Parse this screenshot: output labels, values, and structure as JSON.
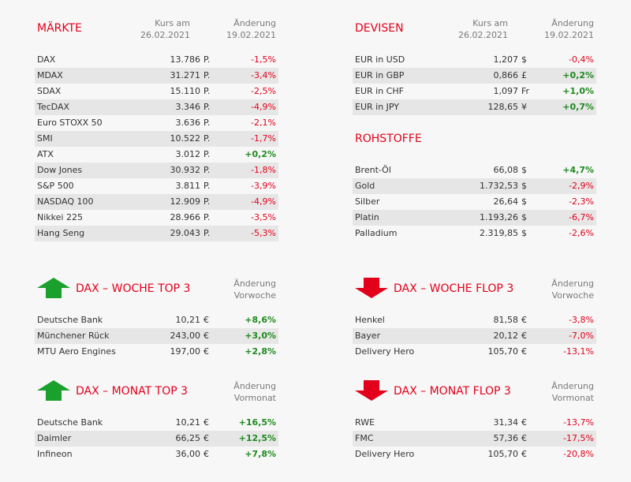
{
  "colors": {
    "title": "#e3001b",
    "negative": "#e3001b",
    "positive": "#1e8a1e",
    "arrow_up": "#1aa02d",
    "arrow_down": "#e3001b"
  },
  "maerkte": {
    "title": "MÄRKTE",
    "col1": [
      "Kurs am",
      "26.02.2021"
    ],
    "col2": [
      "Änderung",
      "19.02.2021"
    ],
    "rows": [
      {
        "name": "DAX",
        "value": "13.786",
        "unit": "P.",
        "change": "-1,5%",
        "dir": "neg"
      },
      {
        "name": "MDAX",
        "value": "31.271",
        "unit": "P.",
        "change": "-3,4%",
        "dir": "neg"
      },
      {
        "name": "SDAX",
        "value": "15.110",
        "unit": "P.",
        "change": "-2,5%",
        "dir": "neg"
      },
      {
        "name": "TecDAX",
        "value": "3.346",
        "unit": "P.",
        "change": "-4,9%",
        "dir": "neg"
      },
      {
        "name": "Euro STOXX 50",
        "value": "3.636",
        "unit": "P.",
        "change": "-2,1%",
        "dir": "neg"
      },
      {
        "name": "SMI",
        "value": "10.522",
        "unit": "P.",
        "change": "-1,7%",
        "dir": "neg"
      },
      {
        "name": "ATX",
        "value": "3.012",
        "unit": "P.",
        "change": "+0,2%",
        "dir": "pos"
      },
      {
        "name": "Dow Jones",
        "value": "30.932",
        "unit": "P.",
        "change": "-1,8%",
        "dir": "neg"
      },
      {
        "name": "S&P 500",
        "value": "3.811",
        "unit": "P.",
        "change": "-3,9%",
        "dir": "neg"
      },
      {
        "name": "NASDAQ 100",
        "value": "12.909",
        "unit": "P.",
        "change": "-4,9%",
        "dir": "neg"
      },
      {
        "name": "Nikkei 225",
        "value": "28.966",
        "unit": "P.",
        "change": "-3,5%",
        "dir": "neg"
      },
      {
        "name": "Hang Seng",
        "value": "29.043",
        "unit": "P.",
        "change": "-5,3%",
        "dir": "neg"
      }
    ]
  },
  "devisen": {
    "title": "DEVISEN",
    "col1": [
      "Kurs am",
      "26.02.2021"
    ],
    "col2": [
      "Änderung",
      "19.02.2021"
    ],
    "rows": [
      {
        "name": "EUR in USD",
        "value": "1,207",
        "unit": "$",
        "change": "-0,4%",
        "dir": "neg"
      },
      {
        "name": "EUR in GBP",
        "value": "0,866",
        "unit": "£",
        "change": "+0,2%",
        "dir": "pos"
      },
      {
        "name": "EUR in CHF",
        "value": "1,097",
        "unit": "Fr",
        "change": "+1,0%",
        "dir": "pos"
      },
      {
        "name": "EUR in JPY",
        "value": "128,65",
        "unit": "¥",
        "change": "+0,7%",
        "dir": "pos"
      }
    ]
  },
  "rohstoffe": {
    "title": "ROHSTOFFE",
    "rows": [
      {
        "name": "Brent-Öl",
        "value": "66,08",
        "unit": "$",
        "change": "+4,7%",
        "dir": "pos"
      },
      {
        "name": "Gold",
        "value": "1.732,53",
        "unit": "$",
        "change": "-2,9%",
        "dir": "neg"
      },
      {
        "name": "Silber",
        "value": "26,64",
        "unit": "$",
        "change": "-2,3%",
        "dir": "neg"
      },
      {
        "name": "Platin",
        "value": "1.193,26",
        "unit": "$",
        "change": "-6,7%",
        "dir": "neg"
      },
      {
        "name": "Palladium",
        "value": "2.319,85",
        "unit": "$",
        "change": "-2,6%",
        "dir": "neg"
      }
    ]
  },
  "woche_top": {
    "title": "DAX – WOCHE TOP 3",
    "icon": "arrow-up-icon",
    "col2": [
      "Änderung",
      "Vorwoche"
    ],
    "rows": [
      {
        "name": "Deutsche Bank",
        "value": "10,21",
        "unit": "€",
        "change": "+8,6%",
        "dir": "pos"
      },
      {
        "name": "Münchener Rück",
        "value": "243,00",
        "unit": "€",
        "change": "+3,0%",
        "dir": "pos"
      },
      {
        "name": "MTU Aero Engines",
        "value": "197,00",
        "unit": "€",
        "change": "+2,8%",
        "dir": "pos"
      }
    ]
  },
  "woche_flop": {
    "title": "DAX – WOCHE FLOP 3",
    "icon": "arrow-down-icon",
    "col2": [
      "Änderung",
      "Vorwoche"
    ],
    "rows": [
      {
        "name": "Henkel",
        "value": "81,58",
        "unit": "€",
        "change": "-3,8%",
        "dir": "neg"
      },
      {
        "name": "Bayer",
        "value": "20,12",
        "unit": "€",
        "change": "-7,0%",
        "dir": "neg"
      },
      {
        "name": "Delivery Hero",
        "value": "105,70",
        "unit": "€",
        "change": "-13,1%",
        "dir": "neg"
      }
    ]
  },
  "monat_top": {
    "title": "DAX – MONAT TOP 3",
    "icon": "arrow-up-icon",
    "col2": [
      "Änderung",
      "Vormonat"
    ],
    "rows": [
      {
        "name": "Deutsche Bank",
        "value": "10,21",
        "unit": "€",
        "change": "+16,5%",
        "dir": "pos"
      },
      {
        "name": "Daimler",
        "value": "66,25",
        "unit": "€",
        "change": "+12,5%",
        "dir": "pos"
      },
      {
        "name": "Infineon",
        "value": "36,00",
        "unit": "€",
        "change": "+7,8%",
        "dir": "pos"
      }
    ]
  },
  "monat_flop": {
    "title": "DAX – MONAT FLOP 3",
    "icon": "arrow-down-icon",
    "col2": [
      "Änderung",
      "Vormonat"
    ],
    "rows": [
      {
        "name": "RWE",
        "value": "31,34",
        "unit": "€",
        "change": "-13,7%",
        "dir": "neg"
      },
      {
        "name": "FMC",
        "value": "57,36",
        "unit": "€",
        "change": "-17,5%",
        "dir": "neg"
      },
      {
        "name": "Delivery Hero",
        "value": "105,70",
        "unit": "€",
        "change": "-20,8%",
        "dir": "neg"
      }
    ]
  }
}
